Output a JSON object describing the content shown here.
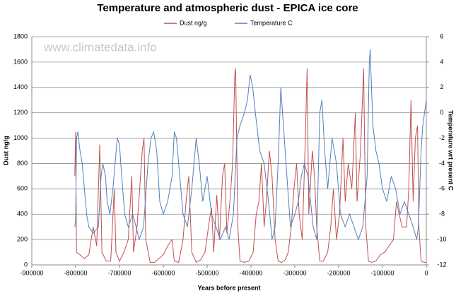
{
  "chart_data": {
    "type": "line",
    "title": "Temperature and atmospheric dust - EPICA ice core",
    "watermark": "www.climatedata.info",
    "x_label": "Years before present",
    "y_label": "Dust ng/g",
    "y2_label": "Temperature wrt present C",
    "xlim": [
      -900000,
      0
    ],
    "xticks": [
      -900000,
      -800000,
      -700000,
      -600000,
      -500000,
      -400000,
      -300000,
      -200000,
      -100000,
      0
    ],
    "ylim": [
      0,
      1800
    ],
    "yticks": [
      0,
      200,
      400,
      600,
      800,
      1000,
      1200,
      1400,
      1600,
      1800
    ],
    "y2lim": [
      -12,
      6
    ],
    "y2ticks": [
      -12,
      -10,
      -8,
      -6,
      -4,
      -2,
      0,
      2,
      4,
      6
    ],
    "grid": true,
    "legend": "top",
    "series": [
      {
        "name": "Dust ng/g",
        "color": "#c0504d",
        "x": [
          -802000,
          -800000,
          -798000,
          -790000,
          -780000,
          -770000,
          -760000,
          -752000,
          -745000,
          -740000,
          -730000,
          -720000,
          -712000,
          -708000,
          -700000,
          -690000,
          -680000,
          -672000,
          -668000,
          -660000,
          -652000,
          -648000,
          -644000,
          -640000,
          -630000,
          -620000,
          -610000,
          -600000,
          -590000,
          -580000,
          -575000,
          -565000,
          -555000,
          -548000,
          -542000,
          -535000,
          -525000,
          -515000,
          -505000,
          -495000,
          -490000,
          -485000,
          -478000,
          -472000,
          -465000,
          -460000,
          -455000,
          -448000,
          -442000,
          -437000,
          -435000,
          -430000,
          -425000,
          -415000,
          -405000,
          -395000,
          -388000,
          -382000,
          -376000,
          -370000,
          -365000,
          -358000,
          -352000,
          -345000,
          -338000,
          -330000,
          -322000,
          -315000,
          -308000,
          -302000,
          -296000,
          -290000,
          -283000,
          -276000,
          -272000,
          -268000,
          -260000,
          -255000,
          -250000,
          -243000,
          -235000,
          -225000,
          -218000,
          -212000,
          -205000,
          -198000,
          -190000,
          -185000,
          -178000,
          -170000,
          -162000,
          -158000,
          -150000,
          -143000,
          -138000,
          -132000,
          -125000,
          -115000,
          -105000,
          -95000,
          -85000,
          -75000,
          -68000,
          -62000,
          -55000,
          -45000,
          -40000,
          -35000,
          -30000,
          -25000,
          -20000,
          -17000,
          -12000,
          -5000,
          0
        ],
        "values": [
          700,
          1050,
          100,
          80,
          50,
          80,
          300,
          150,
          950,
          100,
          30,
          30,
          600,
          100,
          30,
          100,
          200,
          700,
          100,
          300,
          700,
          900,
          1000,
          200,
          20,
          20,
          50,
          80,
          150,
          200,
          30,
          20,
          200,
          500,
          700,
          100,
          20,
          40,
          100,
          350,
          450,
          100,
          550,
          200,
          700,
          800,
          250,
          500,
          800,
          1500,
          1550,
          300,
          30,
          20,
          30,
          100,
          400,
          500,
          800,
          300,
          500,
          900,
          700,
          200,
          30,
          20,
          40,
          100,
          300,
          600,
          800,
          400,
          200,
          1000,
          1550,
          400,
          900,
          700,
          300,
          30,
          30,
          100,
          300,
          600,
          200,
          400,
          1000,
          500,
          800,
          600,
          1200,
          500,
          900,
          1550,
          300,
          30,
          20,
          30,
          80,
          100,
          150,
          200,
          500,
          400,
          300,
          300,
          600,
          1300,
          500,
          1000,
          1100,
          300,
          30,
          20,
          20
        ]
      },
      {
        "name": "Temperature C",
        "color": "#4f81bd",
        "axis": "y2",
        "x": [
          -802000,
          -800000,
          -798000,
          -795000,
          -790000,
          -785000,
          -780000,
          -775000,
          -770000,
          -760000,
          -748000,
          -742000,
          -738000,
          -732000,
          -728000,
          -722000,
          -715000,
          -710000,
          -705000,
          -700000,
          -695000,
          -688000,
          -680000,
          -670000,
          -662000,
          -655000,
          -645000,
          -635000,
          -628000,
          -622000,
          -615000,
          -608000,
          -600000,
          -590000,
          -580000,
          -575000,
          -570000,
          -565000,
          -555000,
          -545000,
          -535000,
          -525000,
          -518000,
          -510000,
          -500000,
          -490000,
          -480000,
          -470000,
          -458000,
          -450000,
          -440000,
          -432000,
          -425000,
          -415000,
          -408000,
          -402000,
          -396000,
          -390000,
          -380000,
          -370000,
          -360000,
          -352000,
          -345000,
          -338000,
          -332000,
          -326000,
          -318000,
          -310000,
          -300000,
          -292000,
          -285000,
          -278000,
          -270000,
          -258000,
          -250000,
          -243000,
          -238000,
          -232000,
          -225000,
          -215000,
          -205000,
          -196000,
          -185000,
          -175000,
          -165000,
          -155000,
          -145000,
          -135000,
          -130000,
          -128000,
          -122000,
          -115000,
          -108000,
          -100000,
          -90000,
          -80000,
          -70000,
          -60000,
          -50000,
          -40000,
          -30000,
          -22000,
          -18000,
          -12000,
          -8000,
          -4000,
          0
        ],
        "values": [
          -9,
          -8.5,
          -2,
          -1.5,
          -3,
          -4,
          -6,
          -8,
          -9,
          -9.5,
          -9,
          -5,
          -4,
          -5,
          -7,
          -8,
          -6,
          -4,
          -2,
          -2.5,
          -5,
          -8,
          -9,
          -8,
          -9,
          -10,
          -9,
          -4,
          -2,
          -1.5,
          -3,
          -7,
          -8,
          -7,
          -5,
          -1.5,
          -2,
          -4,
          -8,
          -9,
          -6,
          -2,
          -4,
          -7,
          -5,
          -8,
          -9,
          -10,
          -9,
          -10,
          -8,
          -2,
          -1,
          0,
          1,
          3,
          2,
          0,
          -3,
          -4,
          -7,
          -10,
          -9,
          -4,
          2,
          -1,
          -5,
          -9,
          -8,
          -7,
          -5,
          -4,
          -5,
          -9,
          -10,
          0,
          1,
          -3,
          -6,
          -2,
          -4,
          -8,
          -9,
          -8,
          -9,
          -10,
          -9,
          -5,
          4,
          5,
          -1,
          -3,
          -4,
          -6,
          -7,
          -5,
          -6,
          -8,
          -7,
          -8,
          -9,
          -10,
          -9,
          -3,
          -1,
          0,
          1
        ]
      }
    ]
  }
}
